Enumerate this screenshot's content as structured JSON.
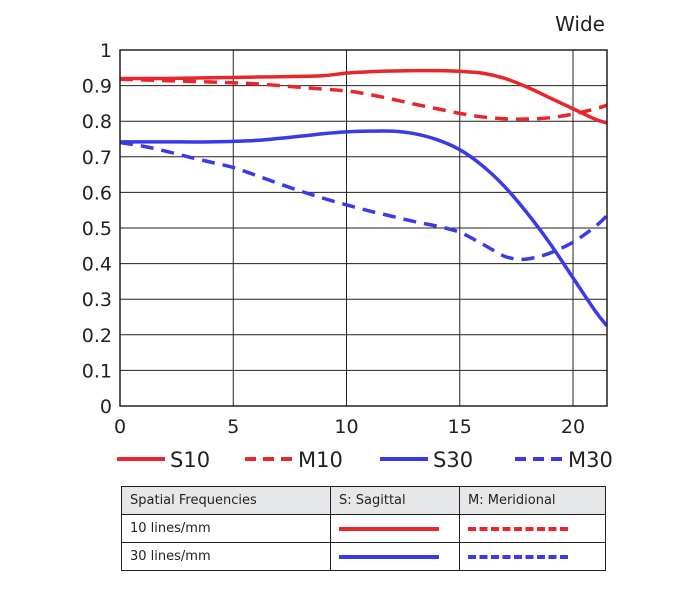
{
  "chart_data": {
    "type": "line",
    "title": "Wide",
    "xlabel": "",
    "ylabel": "",
    "xlim": [
      0,
      21.5
    ],
    "ylim": [
      0,
      1
    ],
    "xticks": [
      0,
      5,
      10,
      15,
      20
    ],
    "yticks": [
      0,
      0.1,
      0.2,
      0.3,
      0.4,
      0.5,
      0.6,
      0.7,
      0.8,
      0.9,
      1
    ],
    "ytick_labels": [
      "0",
      "0.1",
      "0.2",
      "0.3",
      "0.4",
      "0.5",
      "0.6",
      "0.7",
      "0.8",
      "0.9",
      "1"
    ],
    "xtick_labels": [
      "0",
      "5",
      "10",
      "15",
      "20"
    ],
    "grid": true,
    "legend_position": "bottom",
    "series": [
      {
        "name": "S10",
        "color": "#e8262b",
        "dash": false,
        "x": [
          0,
          2,
          4,
          6,
          8,
          9,
          10,
          11,
          12,
          13,
          14,
          15,
          16,
          17,
          18,
          19,
          20,
          21,
          21.5
        ],
        "y": [
          0.92,
          0.92,
          0.922,
          0.924,
          0.926,
          0.928,
          0.935,
          0.939,
          0.941,
          0.942,
          0.942,
          0.94,
          0.935,
          0.92,
          0.895,
          0.865,
          0.835,
          0.805,
          0.795
        ]
      },
      {
        "name": "M10",
        "color": "#e8262b",
        "dash": true,
        "x": [
          0,
          2,
          4,
          6,
          8,
          10,
          11,
          12,
          13,
          14,
          15,
          16,
          17,
          18,
          19,
          20,
          21,
          21.5
        ],
        "y": [
          0.918,
          0.914,
          0.91,
          0.905,
          0.895,
          0.885,
          0.875,
          0.862,
          0.848,
          0.835,
          0.822,
          0.812,
          0.807,
          0.806,
          0.81,
          0.82,
          0.835,
          0.845
        ]
      },
      {
        "name": "S30",
        "color": "#3b3ae8",
        "dash": false,
        "x": [
          0,
          2,
          4,
          6,
          8,
          9,
          10,
          11,
          12,
          13,
          14,
          15,
          16,
          17,
          18,
          19,
          20,
          21,
          21.5
        ],
        "y": [
          0.742,
          0.742,
          0.742,
          0.746,
          0.758,
          0.765,
          0.77,
          0.772,
          0.772,
          0.765,
          0.748,
          0.72,
          0.675,
          0.615,
          0.54,
          0.455,
          0.36,
          0.265,
          0.225
        ]
      },
      {
        "name": "M30",
        "color": "#3b3ae8",
        "dash": true,
        "x": [
          0,
          1,
          2,
          3,
          4,
          5,
          6,
          7,
          8,
          9,
          10,
          11,
          12,
          13,
          14,
          15,
          16,
          17,
          17.8,
          18.5,
          19,
          20,
          21,
          21.5
        ],
        "y": [
          0.74,
          0.73,
          0.716,
          0.7,
          0.685,
          0.67,
          0.648,
          0.625,
          0.603,
          0.583,
          0.565,
          0.548,
          0.533,
          0.518,
          0.505,
          0.488,
          0.455,
          0.42,
          0.412,
          0.42,
          0.43,
          0.46,
          0.505,
          0.535
        ]
      }
    ]
  },
  "table": {
    "headers": [
      "Spatial Frequencies",
      "S: Sagittal",
      "M: Meridional"
    ],
    "rows": [
      {
        "label": "10 lines/mm",
        "sagittal_color": "#e8262b",
        "meridional_color": "#e8262b"
      },
      {
        "label": "30 lines/mm",
        "sagittal_color": "#3b3ae8",
        "meridional_color": "#3b3ae8"
      }
    ]
  }
}
